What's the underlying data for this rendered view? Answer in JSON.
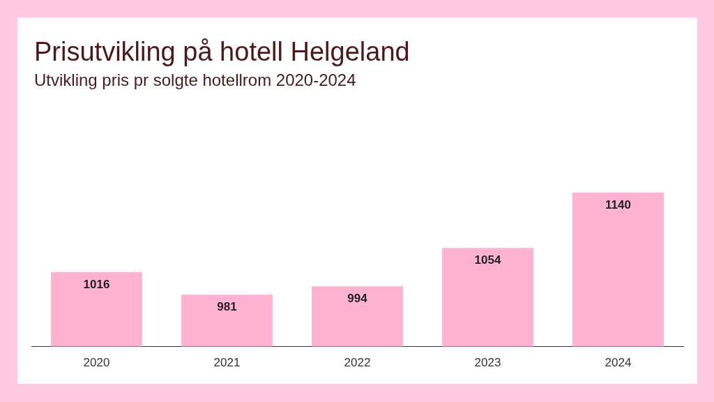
{
  "chart_data": {
    "type": "bar",
    "title": "Prisutvikling på hotell Helgeland",
    "subtitle": "Utvikling pris pr solgte hotellrom 2020-2024",
    "categories": [
      "2020",
      "2021",
      "2022",
      "2023",
      "2024"
    ],
    "values": [
      1016,
      981,
      994,
      1054,
      1140
    ],
    "color": "#ffb3d1",
    "tick_labels": "x",
    "data_labels": true,
    "grid": false,
    "legend": false
  }
}
